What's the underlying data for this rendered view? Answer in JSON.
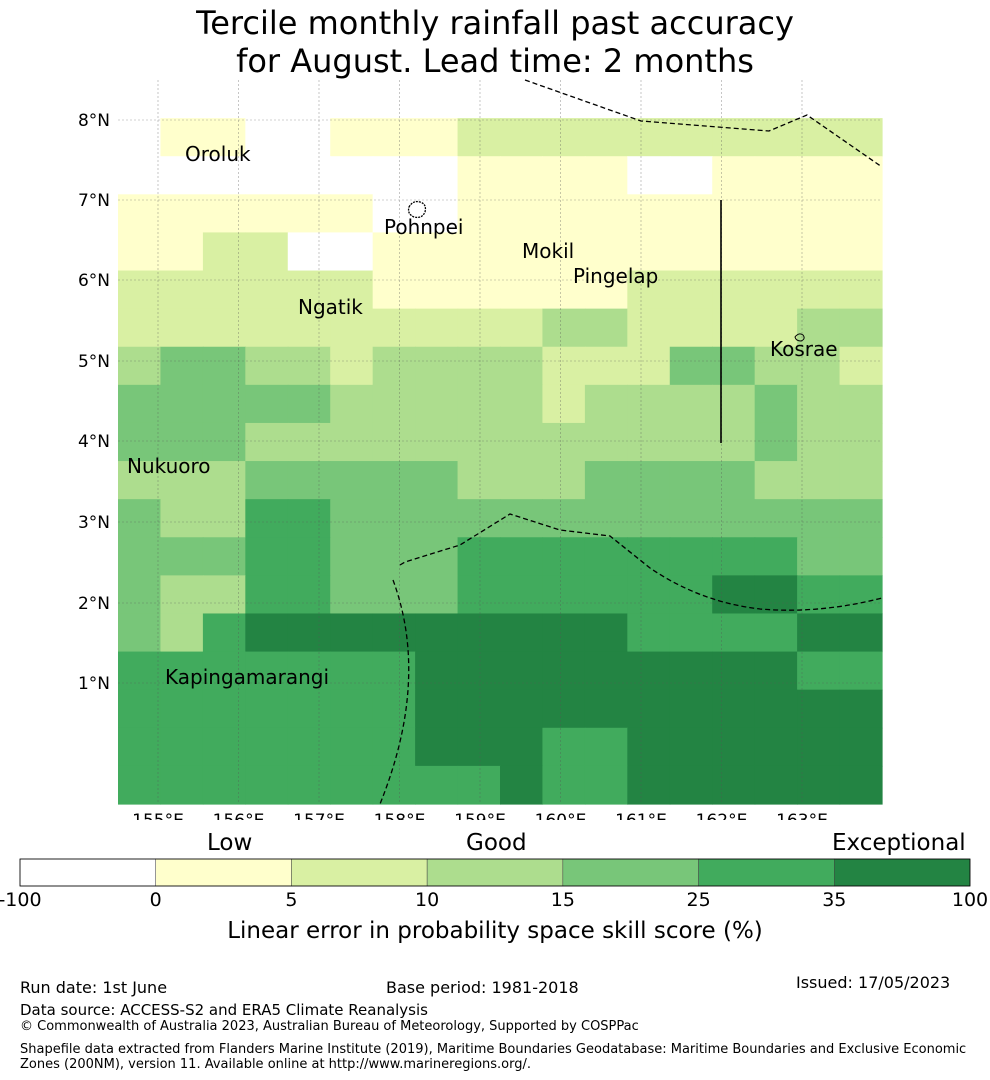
{
  "title": {
    "line1": "Tercile monthly rainfall past accuracy",
    "line2": "for August. Lead time: 2 months"
  },
  "map": {
    "lon_labels": [
      "155°E",
      "156°E",
      "157°E",
      "158°E",
      "159°E",
      "160°E",
      "161°E",
      "162°E",
      "163°E"
    ],
    "lat_labels": [
      "1°N",
      "2°N",
      "3°N",
      "4°N",
      "5°N",
      "6°N",
      "7°N",
      "8°N"
    ],
    "places": [
      "Oroluk",
      "Pohnpei",
      "Mokil",
      "Pingelap",
      "Ngatik",
      "Kosrae",
      "Nukuoro",
      "Kapingamarangi"
    ],
    "grid": [
      [
        "w",
        "w",
        "w",
        "w",
        "w",
        "w",
        "w",
        "w",
        "w",
        "w",
        "w",
        "w",
        "w",
        "w",
        "w",
        "w",
        "w",
        "w"
      ],
      [
        "w",
        "y",
        "y",
        "w",
        "w",
        "y",
        "y",
        "y",
        "g1",
        "g1",
        "g1",
        "g1",
        "g1",
        "g1",
        "g1",
        "g1",
        "g1",
        "g1"
      ],
      [
        "w",
        "w",
        "w",
        "w",
        "w",
        "w",
        "w",
        "w",
        "y",
        "y",
        "y",
        "y",
        "w",
        "w",
        "y",
        "y",
        "y",
        "y"
      ],
      [
        "y",
        "y",
        "y",
        "y",
        "y",
        "y",
        "w",
        "w",
        "y",
        "y",
        "y",
        "y",
        "y",
        "y",
        "y",
        "y",
        "y",
        "y"
      ],
      [
        "y",
        "y",
        "g1",
        "g1",
        "w",
        "w",
        "y",
        "y",
        "y",
        "y",
        "y",
        "y",
        "y",
        "y",
        "y",
        "y",
        "y",
        "y"
      ],
      [
        "g1",
        "g1",
        "g1",
        "g1",
        "g1",
        "g1",
        "y",
        "y",
        "y",
        "y",
        "y",
        "y",
        "g1",
        "g1",
        "g1",
        "g1",
        "g1",
        "g1"
      ],
      [
        "g1",
        "g1",
        "g1",
        "g1",
        "g1",
        "g1",
        "g1",
        "g1",
        "g1",
        "g1",
        "g2",
        "g2",
        "g1",
        "g1",
        "g1",
        "g1",
        "g2",
        "g2"
      ],
      [
        "g2",
        "g3",
        "g3",
        "g2",
        "g2",
        "g1",
        "g2",
        "g2",
        "g2",
        "g2",
        "g1",
        "g1",
        "g1",
        "g3",
        "g3",
        "g2",
        "g2",
        "g1"
      ],
      [
        "g3",
        "g3",
        "g3",
        "g3",
        "g3",
        "g2",
        "g2",
        "g2",
        "g2",
        "g2",
        "g1",
        "g2",
        "g2",
        "g2",
        "g2",
        "g3",
        "g2",
        "g2"
      ],
      [
        "g3",
        "g3",
        "g3",
        "g2",
        "g2",
        "g2",
        "g2",
        "g2",
        "g2",
        "g2",
        "g2",
        "g2",
        "g2",
        "g2",
        "g2",
        "g3",
        "g2",
        "g2"
      ],
      [
        "g2",
        "g2",
        "g2",
        "g3",
        "g3",
        "g3",
        "g3",
        "g3",
        "g2",
        "g2",
        "g2",
        "g3",
        "g3",
        "g3",
        "g3",
        "g2",
        "g2",
        "g2"
      ],
      [
        "g3",
        "g2",
        "g2",
        "g4",
        "g4",
        "g3",
        "g3",
        "g3",
        "g3",
        "g3",
        "g3",
        "g3",
        "g3",
        "g3",
        "g3",
        "g3",
        "g3",
        "g3"
      ],
      [
        "g3",
        "g3",
        "g3",
        "g4",
        "g4",
        "g3",
        "g3",
        "g3",
        "g4",
        "g4",
        "g4",
        "g4",
        "g4",
        "g4",
        "g4",
        "g4",
        "g3",
        "g3"
      ],
      [
        "g3",
        "g2",
        "g2",
        "g4",
        "g4",
        "g3",
        "g3",
        "g3",
        "g4",
        "g4",
        "g4",
        "g4",
        "g4",
        "g4",
        "g5",
        "g5",
        "g4",
        "g4"
      ],
      [
        "g3",
        "g2",
        "g4",
        "g5",
        "g5",
        "g5",
        "g5",
        "g5",
        "g5",
        "g5",
        "g5",
        "g5",
        "g4",
        "g4",
        "g4",
        "g4",
        "g5",
        "g5"
      ],
      [
        "g4",
        "g4",
        "g4",
        "g4",
        "g4",
        "g4",
        "g4",
        "g5",
        "g5",
        "g5",
        "g5",
        "g5",
        "g5",
        "g5",
        "g5",
        "g5",
        "g4",
        "g4"
      ],
      [
        "g4",
        "g4",
        "g4",
        "g4",
        "g4",
        "g4",
        "g4",
        "g5",
        "g5",
        "g5",
        "g5",
        "g5",
        "g5",
        "g5",
        "g5",
        "g5",
        "g5",
        "g5"
      ],
      [
        "g4",
        "g4",
        "g4",
        "g4",
        "g4",
        "g4",
        "g4",
        "g5",
        "g5",
        "g5",
        "g4",
        "g4",
        "g5",
        "g5",
        "g5",
        "g5",
        "g5",
        "g5"
      ],
      [
        "g4",
        "g4",
        "g4",
        "g4",
        "g4",
        "g4",
        "g4",
        "g4",
        "g4",
        "g5",
        "g4",
        "g4",
        "g5",
        "g5",
        "g5",
        "g5",
        "g5",
        "g5"
      ]
    ]
  },
  "colorbar": {
    "categories": [
      "Low",
      "Good",
      "Exceptional"
    ],
    "ticks": [
      "-100",
      "0",
      "5",
      "10",
      "15",
      "25",
      "35",
      "100"
    ],
    "colors": [
      "#ffffff",
      "#ffffcc",
      "#d9f0a3",
      "#addd8e",
      "#78c679",
      "#41ab5d",
      "#238443"
    ],
    "label": "Linear error in probability space skill score (%)"
  },
  "footer": {
    "run_date": "Run date: 1st June",
    "base_period": "Base period: 1981-2018",
    "issued": "Issued: 17/05/2023",
    "data_source": "Data source: ACCESS-S2 and ERA5 Climate Reanalysis",
    "copyright": "© Commonwealth of Australia 2023, Australian Bureau of Meteorology, Supported by COSPPac",
    "shapefile": "Shapefile data extracted from Flanders Marine Institute (2019), Maritime Boundaries Geodatabase: Maritime Boundaries and Exclusive Economic Zones (200NM), version 11. Available online at http://www.marineregions.org/."
  }
}
